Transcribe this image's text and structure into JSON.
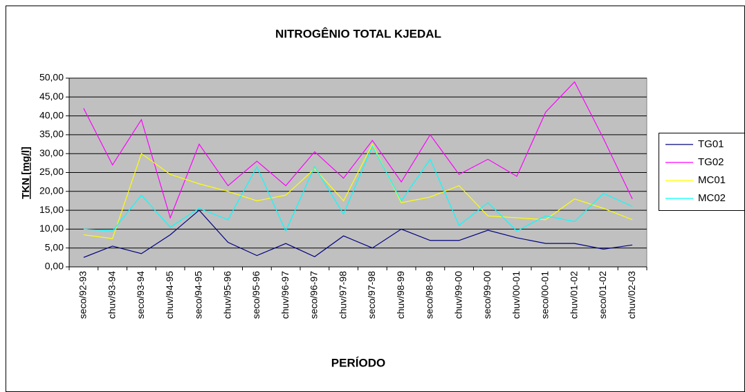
{
  "chart_data": {
    "type": "line",
    "title": "NITROGÊNIO TOTAL KJEDAL",
    "x_label": "PERÍODO",
    "y_label": "TKN [mg/l]",
    "categories": [
      "seco/92-93",
      "chuv/93-94",
      "seco/93-94",
      "chuv/94-95",
      "seco/94-95",
      "chuv/95-96",
      "seco/95-96",
      "chuv/96-97",
      "seco/96-97",
      "chuv/97-98",
      "seco/97-98",
      "chuv/98-99",
      "seco/98-99",
      "chuv/99-00",
      "seco/99-00",
      "chuv/00-01",
      "seco/00-01",
      "chuv/01-02",
      "seco/01-02",
      "chuv/02-03"
    ],
    "series": [
      {
        "name": "TG01",
        "color": "#000080",
        "values": [
          2.5,
          5.5,
          3.5,
          8.5,
          15,
          6.5,
          3,
          6.2,
          2.7,
          8.2,
          5,
          10,
          7,
          7,
          9.7,
          7.7,
          6.2,
          6.2,
          4.7,
          5.8
        ]
      },
      {
        "name": "TG02",
        "color": "#ff00ff",
        "values": [
          42,
          27,
          39,
          13,
          32.5,
          21.5,
          28,
          21.5,
          30.5,
          23.5,
          33.5,
          22.5,
          35,
          24.5,
          28.5,
          24,
          41,
          49,
          34,
          18
        ]
      },
      {
        "name": "MC01",
        "color": "#ffff00",
        "values": [
          8.5,
          7.5,
          30,
          24.5,
          22,
          20,
          17.5,
          19,
          26,
          17.5,
          32.5,
          17,
          18.5,
          21.5,
          13.5,
          13,
          12.5,
          18,
          15.5,
          12.5
        ]
      },
      {
        "name": "MC02",
        "color": "#00ffff",
        "values": [
          10,
          9.5,
          19,
          10.5,
          15.5,
          12.5,
          26.5,
          9.5,
          26.5,
          14,
          32,
          17.5,
          28.5,
          11,
          17,
          9.5,
          13.5,
          12,
          19.5,
          16
        ]
      }
    ],
    "ylim": [
      0,
      50
    ],
    "yticks": [
      {
        "value": 0,
        "label": "0,00"
      },
      {
        "value": 5,
        "label": "5,00"
      },
      {
        "value": 10,
        "label": "10,00"
      },
      {
        "value": 15,
        "label": "15,00"
      },
      {
        "value": 20,
        "label": "20,00"
      },
      {
        "value": 25,
        "label": "25,00"
      },
      {
        "value": 30,
        "label": "30,00"
      },
      {
        "value": 35,
        "label": "35,00"
      },
      {
        "value": 40,
        "label": "40,00"
      },
      {
        "value": 45,
        "label": "45,00"
      },
      {
        "value": 50,
        "label": "50,00"
      }
    ],
    "grid": true,
    "plot_background": "#c0c0c0",
    "legend": "right"
  }
}
